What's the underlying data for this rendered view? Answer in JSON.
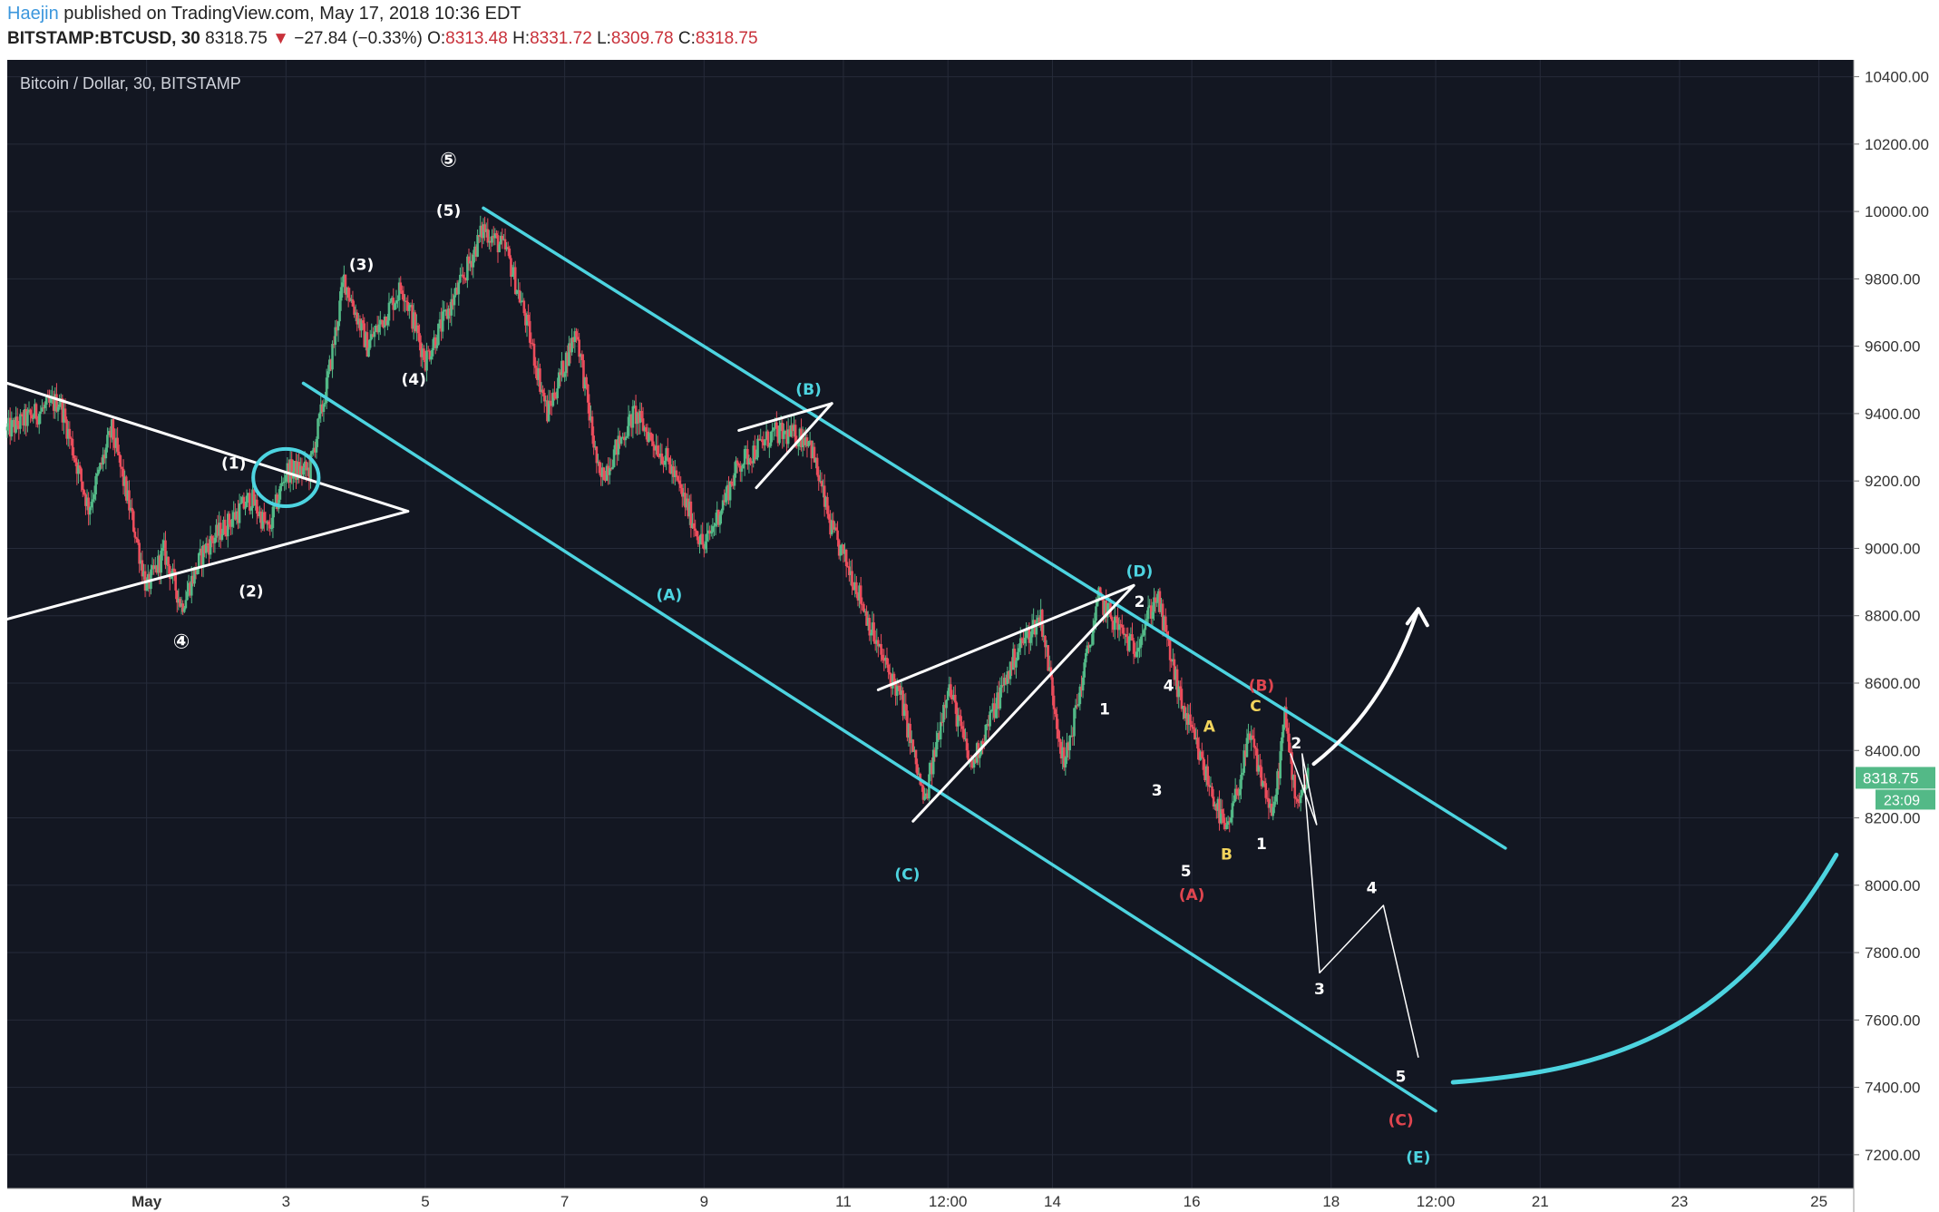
{
  "header": {
    "author": "Haejin",
    "published_text": "published on TradingView.com, May 17, 2018 10:36 EDT",
    "symbol": "BITSTAMP:BTCUSD, 30",
    "last": "8318.75",
    "change_arrow": "▼",
    "change": "−27.84 (−0.33%)",
    "open_label": "O:",
    "open": "8313.48",
    "high_label": "H:",
    "high": "8331.72",
    "low_label": "L:",
    "low": "8309.78",
    "close_label": "C:",
    "close": "8318.75"
  },
  "chart_data": {
    "type": "candlestick",
    "title": "Bitcoin / Dollar, 30, BITSTAMP",
    "y_ticks": [
      "10400.00",
      "10200.00",
      "10000.00",
      "9800.00",
      "9600.00",
      "9400.00",
      "9200.00",
      "9000.00",
      "8800.00",
      "8600.00",
      "8400.00",
      "8200.00",
      "8000.00",
      "7800.00",
      "7600.00",
      "7400.00",
      "7200.00"
    ],
    "x_ticks": [
      "May",
      "3",
      "5",
      "7",
      "9",
      "11",
      "12:00",
      "14",
      "16",
      "18",
      "12:00",
      "21",
      "23",
      "25"
    ],
    "price_tag": "8318.75",
    "countdown_tag": "23:09",
    "ylim": [
      7100,
      10450
    ],
    "xlim": [
      "2018-04-29",
      "2018-05-25 12:00"
    ],
    "grid": true,
    "colors": {
      "background": "#131722",
      "grid": "#262b3a",
      "up": "#53b987",
      "down": "#eb4d5c",
      "channel": "#4dd4e0",
      "annotation": "#ffffff",
      "price_tag": "#53b987"
    },
    "price_path": [
      [
        "2018-04-29 00:00",
        9350
      ],
      [
        "2018-04-29 18:00",
        9440
      ],
      [
        "2018-04-30 04:00",
        9120
      ],
      [
        "2018-04-30 12:00",
        9350
      ],
      [
        "2018-04-30 20:00",
        9050
      ],
      [
        "2018-05-01 00:00",
        8880
      ],
      [
        "2018-05-01 06:00",
        8990
      ],
      [
        "2018-05-01 12:00",
        8830
      ],
      [
        "2018-05-01 20:00",
        9000
      ],
      [
        "2018-05-02 12:00",
        9150
      ],
      [
        "2018-05-02 18:00",
        9050
      ],
      [
        "2018-05-03 00:00",
        9230
      ],
      [
        "2018-05-03 08:00",
        9230
      ],
      [
        "2018-05-03 14:00",
        9480
      ],
      [
        "2018-05-03 20:00",
        9800
      ],
      [
        "2018-05-04 04:00",
        9600
      ],
      [
        "2018-05-04 16:00",
        9780
      ],
      [
        "2018-05-05 00:00",
        9560
      ],
      [
        "2018-05-05 12:00",
        9780
      ],
      [
        "2018-05-05 20:00",
        9950
      ],
      [
        "2018-05-06 04:00",
        9880
      ],
      [
        "2018-05-06 10:00",
        9700
      ],
      [
        "2018-05-06 18:00",
        9400
      ],
      [
        "2018-05-07 04:00",
        9650
      ],
      [
        "2018-05-07 12:00",
        9200
      ],
      [
        "2018-05-08 00:00",
        9400
      ],
      [
        "2018-05-08 12:00",
        9250
      ],
      [
        "2018-05-09 00:00",
        9000
      ],
      [
        "2018-05-09 12:00",
        9250
      ],
      [
        "2018-05-10 00:00",
        9340
      ],
      [
        "2018-05-10 12:00",
        9330
      ],
      [
        "2018-05-10 20:00",
        9050
      ],
      [
        "2018-05-11 04:00",
        8900
      ],
      [
        "2018-05-11 12:00",
        8700
      ],
      [
        "2018-05-11 20:00",
        8550
      ],
      [
        "2018-05-12 04:00",
        8240
      ],
      [
        "2018-05-12 12:00",
        8600
      ],
      [
        "2018-05-12 20:00",
        8350
      ],
      [
        "2018-05-13 12:00",
        8700
      ],
      [
        "2018-05-13 20:00",
        8800
      ],
      [
        "2018-05-14 04:00",
        8350
      ],
      [
        "2018-05-14 16:00",
        8850
      ],
      [
        "2018-05-15 04:00",
        8700
      ],
      [
        "2018-05-15 12:00",
        8860
      ],
      [
        "2018-05-15 20:00",
        8550
      ],
      [
        "2018-05-16 04:00",
        8350
      ],
      [
        "2018-05-16 12:00",
        8150
      ],
      [
        "2018-05-16 20:00",
        8440
      ],
      [
        "2018-05-17 04:00",
        8200
      ],
      [
        "2018-05-17 08:00",
        8500
      ],
      [
        "2018-05-17 12:00",
        8250
      ],
      [
        "2018-05-17 16:00",
        8319
      ]
    ],
    "drawings": {
      "lines": [
        {
          "role": "triangle",
          "points": [
            [
              "2018-04-29 00:00",
              9490
            ],
            [
              "2018-05-04 18:00",
              9110
            ]
          ]
        },
        {
          "role": "triangle",
          "points": [
            [
              "2018-04-29 00:00",
              8790
            ],
            [
              "2018-05-04 18:00",
              9110
            ]
          ]
        },
        {
          "role": "channel",
          "points": [
            [
              "2018-05-03 06:00",
              9490
            ],
            [
              "2018-05-19 12:00",
              7330
            ]
          ]
        },
        {
          "role": "channel",
          "points": [
            [
              "2018-05-05 20:00",
              10010
            ],
            [
              "2018-05-20 12:00",
              8110
            ]
          ]
        },
        {
          "role": "wedge",
          "points": [
            [
              "2018-05-09 12:00",
              9350
            ],
            [
              "2018-05-10 20:00",
              9430
            ]
          ]
        },
        {
          "role": "wedge",
          "points": [
            [
              "2018-05-09 18:00",
              9180
            ],
            [
              "2018-05-10 20:00",
              9430
            ]
          ]
        },
        {
          "role": "wedge",
          "points": [
            [
              "2018-05-11 12:00",
              8580
            ],
            [
              "2018-05-15 04:00",
              8890
            ]
          ]
        },
        {
          "role": "wedge",
          "points": [
            [
              "2018-05-12 00:00",
              8190
            ],
            [
              "2018-05-15 04:00",
              8890
            ]
          ]
        },
        {
          "role": "projection",
          "points": [
            [
              "2018-05-17 10:00",
              8390
            ],
            [
              "2018-05-17 19:00",
              8180
            ],
            [
              "2018-05-17 14:00",
              8390
            ],
            [
              "2018-05-17 20:00",
              7740
            ],
            [
              "2018-05-18 18:00",
              7940
            ],
            [
              "2018-05-19 06:00",
              7490
            ]
          ]
        },
        {
          "role": "bullish-curve",
          "points": [
            [
              "2018-05-19 18:00",
              7415
            ],
            [
              "2018-05-22 00:00",
              7450
            ],
            [
              "2018-05-23 18:00",
              7560
            ],
            [
              "2018-05-25 06:00",
              8090
            ]
          ]
        },
        {
          "role": "bullish-arrow",
          "points": [
            [
              "2018-05-17 18:00",
              8360
            ],
            [
              "2018-05-18 18:00",
              8520
            ],
            [
              "2018-05-19 06:00",
              8820
            ]
          ]
        }
      ],
      "ellipse": {
        "center": [
          "2018-05-03 00:00",
          9210
        ],
        "radius_days": 0.47,
        "radius_price": 85
      },
      "labels": [
        {
          "text": "⑤",
          "x": "2018-05-05 08:00",
          "y": 10150,
          "color": "white",
          "size": 22
        },
        {
          "text": "(5)",
          "x": "2018-05-05 08:00",
          "y": 10000,
          "color": "white"
        },
        {
          "text": "(3)",
          "x": "2018-05-04 02:00",
          "y": 9840,
          "color": "white"
        },
        {
          "text": "(4)",
          "x": "2018-05-04 20:00",
          "y": 9500,
          "color": "white"
        },
        {
          "text": "(1)",
          "x": "2018-05-02 06:00",
          "y": 9250,
          "color": "white"
        },
        {
          "text": "(2)",
          "x": "2018-05-02 12:00",
          "y": 8870,
          "color": "white"
        },
        {
          "text": "④",
          "x": "2018-05-01 12:00",
          "y": 8720,
          "color": "white",
          "size": 22
        },
        {
          "text": "(A)",
          "x": "2018-05-08 12:00",
          "y": 8860,
          "color": "cyan"
        },
        {
          "text": "(B)",
          "x": "2018-05-10 12:00",
          "y": 9470,
          "color": "cyan"
        },
        {
          "text": "(C)",
          "x": "2018-05-11 22:00",
          "y": 8030,
          "color": "cyan"
        },
        {
          "text": "(D)",
          "x": "2018-05-15 06:00",
          "y": 8930,
          "color": "cyan"
        },
        {
          "text": "(E)",
          "x": "2018-05-19 06:00",
          "y": 7190,
          "color": "cyan"
        },
        {
          "text": "2",
          "x": "2018-05-15 06:00",
          "y": 8840,
          "color": "white"
        },
        {
          "text": "1",
          "x": "2018-05-14 18:00",
          "y": 8520,
          "color": "white"
        },
        {
          "text": "4",
          "x": "2018-05-15 16:00",
          "y": 8590,
          "color": "white"
        },
        {
          "text": "3",
          "x": "2018-05-15 12:00",
          "y": 8280,
          "color": "white"
        },
        {
          "text": "5",
          "x": "2018-05-15 22:00",
          "y": 8040,
          "color": "white"
        },
        {
          "text": "(A)",
          "x": "2018-05-16 00:00",
          "y": 7970,
          "color": "red"
        },
        {
          "text": "A",
          "x": "2018-05-16 06:00",
          "y": 8470,
          "color": "yellow"
        },
        {
          "text": "B",
          "x": "2018-05-16 12:00",
          "y": 8090,
          "color": "yellow"
        },
        {
          "text": "C",
          "x": "2018-05-16 22:00",
          "y": 8530,
          "color": "yellow"
        },
        {
          "text": "(B)",
          "x": "2018-05-17 00:00",
          "y": 8590,
          "color": "red"
        },
        {
          "text": "2",
          "x": "2018-05-17 12:00",
          "y": 8420,
          "color": "white"
        },
        {
          "text": "1",
          "x": "2018-05-17 00:00",
          "y": 8120,
          "color": "white"
        },
        {
          "text": "3",
          "x": "2018-05-17 20:00",
          "y": 7690,
          "color": "white"
        },
        {
          "text": "4",
          "x": "2018-05-18 14:00",
          "y": 7990,
          "color": "white"
        },
        {
          "text": "5",
          "x": "2018-05-19 00:00",
          "y": 7430,
          "color": "white"
        },
        {
          "text": "(C)",
          "x": "2018-05-19 00:00",
          "y": 7300,
          "color": "red"
        }
      ]
    }
  }
}
